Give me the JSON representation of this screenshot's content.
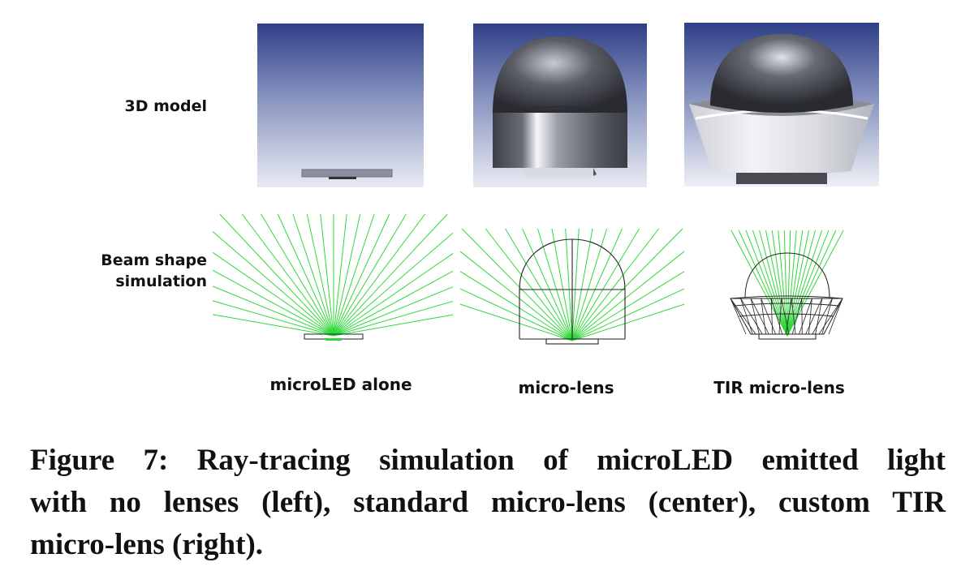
{
  "row_labels": {
    "model": "3D model",
    "beam_line1": "Beam shape",
    "beam_line2": "simulation"
  },
  "columns": [
    {
      "caption": "microLED alone"
    },
    {
      "caption": "micro-lens"
    },
    {
      "caption": "TIR micro-lens"
    }
  ],
  "caption": {
    "line1": "Figure 7: Ray-tracing simulation of microLED emitted light",
    "line2": "with no lenses (left), standard micro-lens (center), custom TIR",
    "line3": "micro-lens (right)."
  },
  "colors": {
    "ray_green": "#2fd83a",
    "outline": "#222222"
  }
}
